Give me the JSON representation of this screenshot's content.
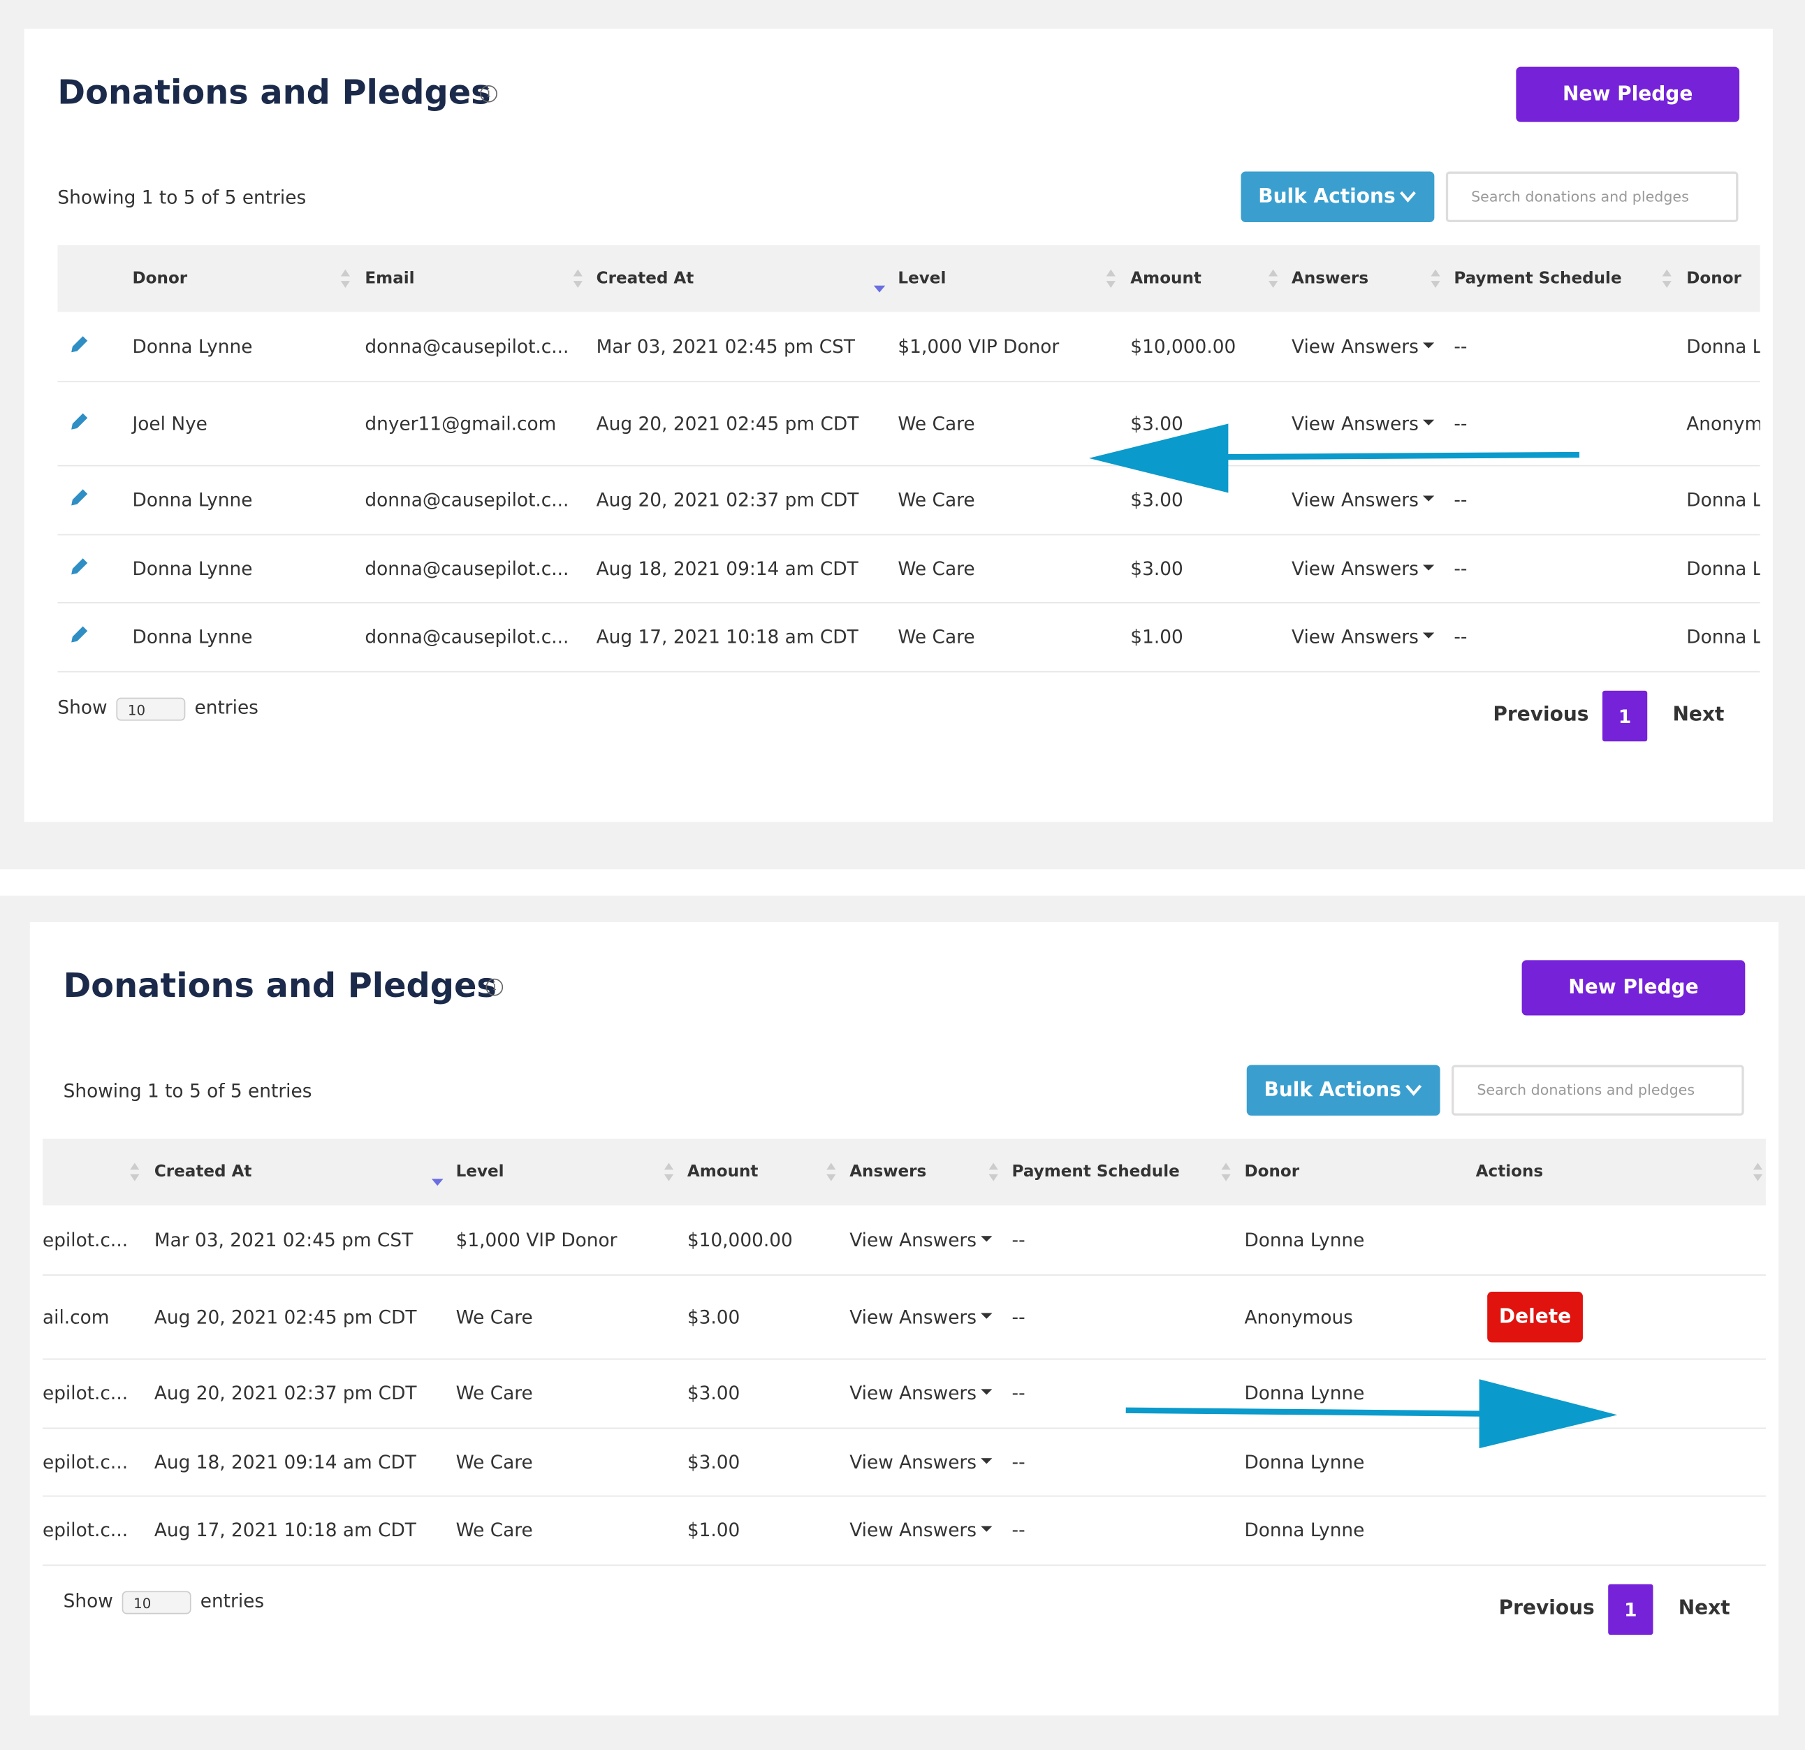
{
  "panels": [
    {
      "title": "Donations and Pledges",
      "new_button": "New Pledge",
      "showing": "Showing 1 to 5 of 5 entries",
      "bulk_actions": "Bulk Actions",
      "search_placeholder": "Search donations and pledges",
      "headers": [
        "Donor",
        "Email",
        "Created At",
        "Level",
        "Amount",
        "Answers",
        "Payment Schedule",
        "Donor"
      ],
      "rows": [
        [
          "Donna Lynne",
          "donna@causepilot.c...",
          "Mar 03, 2021 02:45 pm CST",
          "$1,000 VIP Donor",
          "$10,000.00",
          "View Answers",
          "--",
          "Donna L"
        ],
        [
          "Joel Nye",
          "dnyer11@gmail.com",
          "Aug 20, 2021 02:45 pm CDT",
          "We Care",
          "$3.00",
          "View Answers",
          "--",
          "Anonym"
        ],
        [
          "Donna Lynne",
          "donna@causepilot.c...",
          "Aug 20, 2021 02:37 pm CDT",
          "We Care",
          "$3.00",
          "View Answers",
          "--",
          "Donna L"
        ],
        [
          "Donna Lynne",
          "donna@causepilot.c...",
          "Aug 18, 2021 09:14 am CDT",
          "We Care",
          "$3.00",
          "View Answers",
          "--",
          "Donna L"
        ],
        [
          "Donna Lynne",
          "donna@causepilot.c...",
          "Aug 17, 2021 10:18 am CDT",
          "We Care",
          "$1.00",
          "View Answers",
          "--",
          "Donna L"
        ]
      ],
      "show_label": "Show",
      "show_value": "10",
      "entries_label": "entries",
      "previous": "Previous",
      "page": "1",
      "next": "Next"
    },
    {
      "title": "Donations and Pledges",
      "new_button": "New Pledge",
      "showing": "Showing 1 to 5 of 5 entries",
      "bulk_actions": "Bulk Actions",
      "search_placeholder": "Search donations and pledges",
      "headers": [
        "Created At",
        "Level",
        "Amount",
        "Answers",
        "Payment Schedule",
        "Donor",
        "Actions"
      ],
      "rows": [
        [
          "epilot.c...",
          "Mar 03, 2021 02:45 pm CST",
          "$1,000 VIP Donor",
          "$10,000.00",
          "View Answers",
          "--",
          "Donna Lynne"
        ],
        [
          "ail.com",
          "Aug 20, 2021 02:45 pm CDT",
          "We Care",
          "$3.00",
          "View Answers",
          "--",
          "Anonymous",
          "Delete"
        ],
        [
          "epilot.c...",
          "Aug 20, 2021 02:37 pm CDT",
          "We Care",
          "$3.00",
          "View Answers",
          "--",
          "Donna Lynne"
        ],
        [
          "epilot.c...",
          "Aug 18, 2021 09:14 am CDT",
          "We Care",
          "$3.00",
          "View Answers",
          "--",
          "Donna Lynne"
        ],
        [
          "epilot.c...",
          "Aug 17, 2021 10:18 am CDT",
          "We Care",
          "$1.00",
          "View Answers",
          "--",
          "Donna Lynne"
        ]
      ],
      "show_label": "Show",
      "show_value": "10",
      "entries_label": "entries",
      "previous": "Previous",
      "page": "1",
      "next": "Next"
    }
  ]
}
